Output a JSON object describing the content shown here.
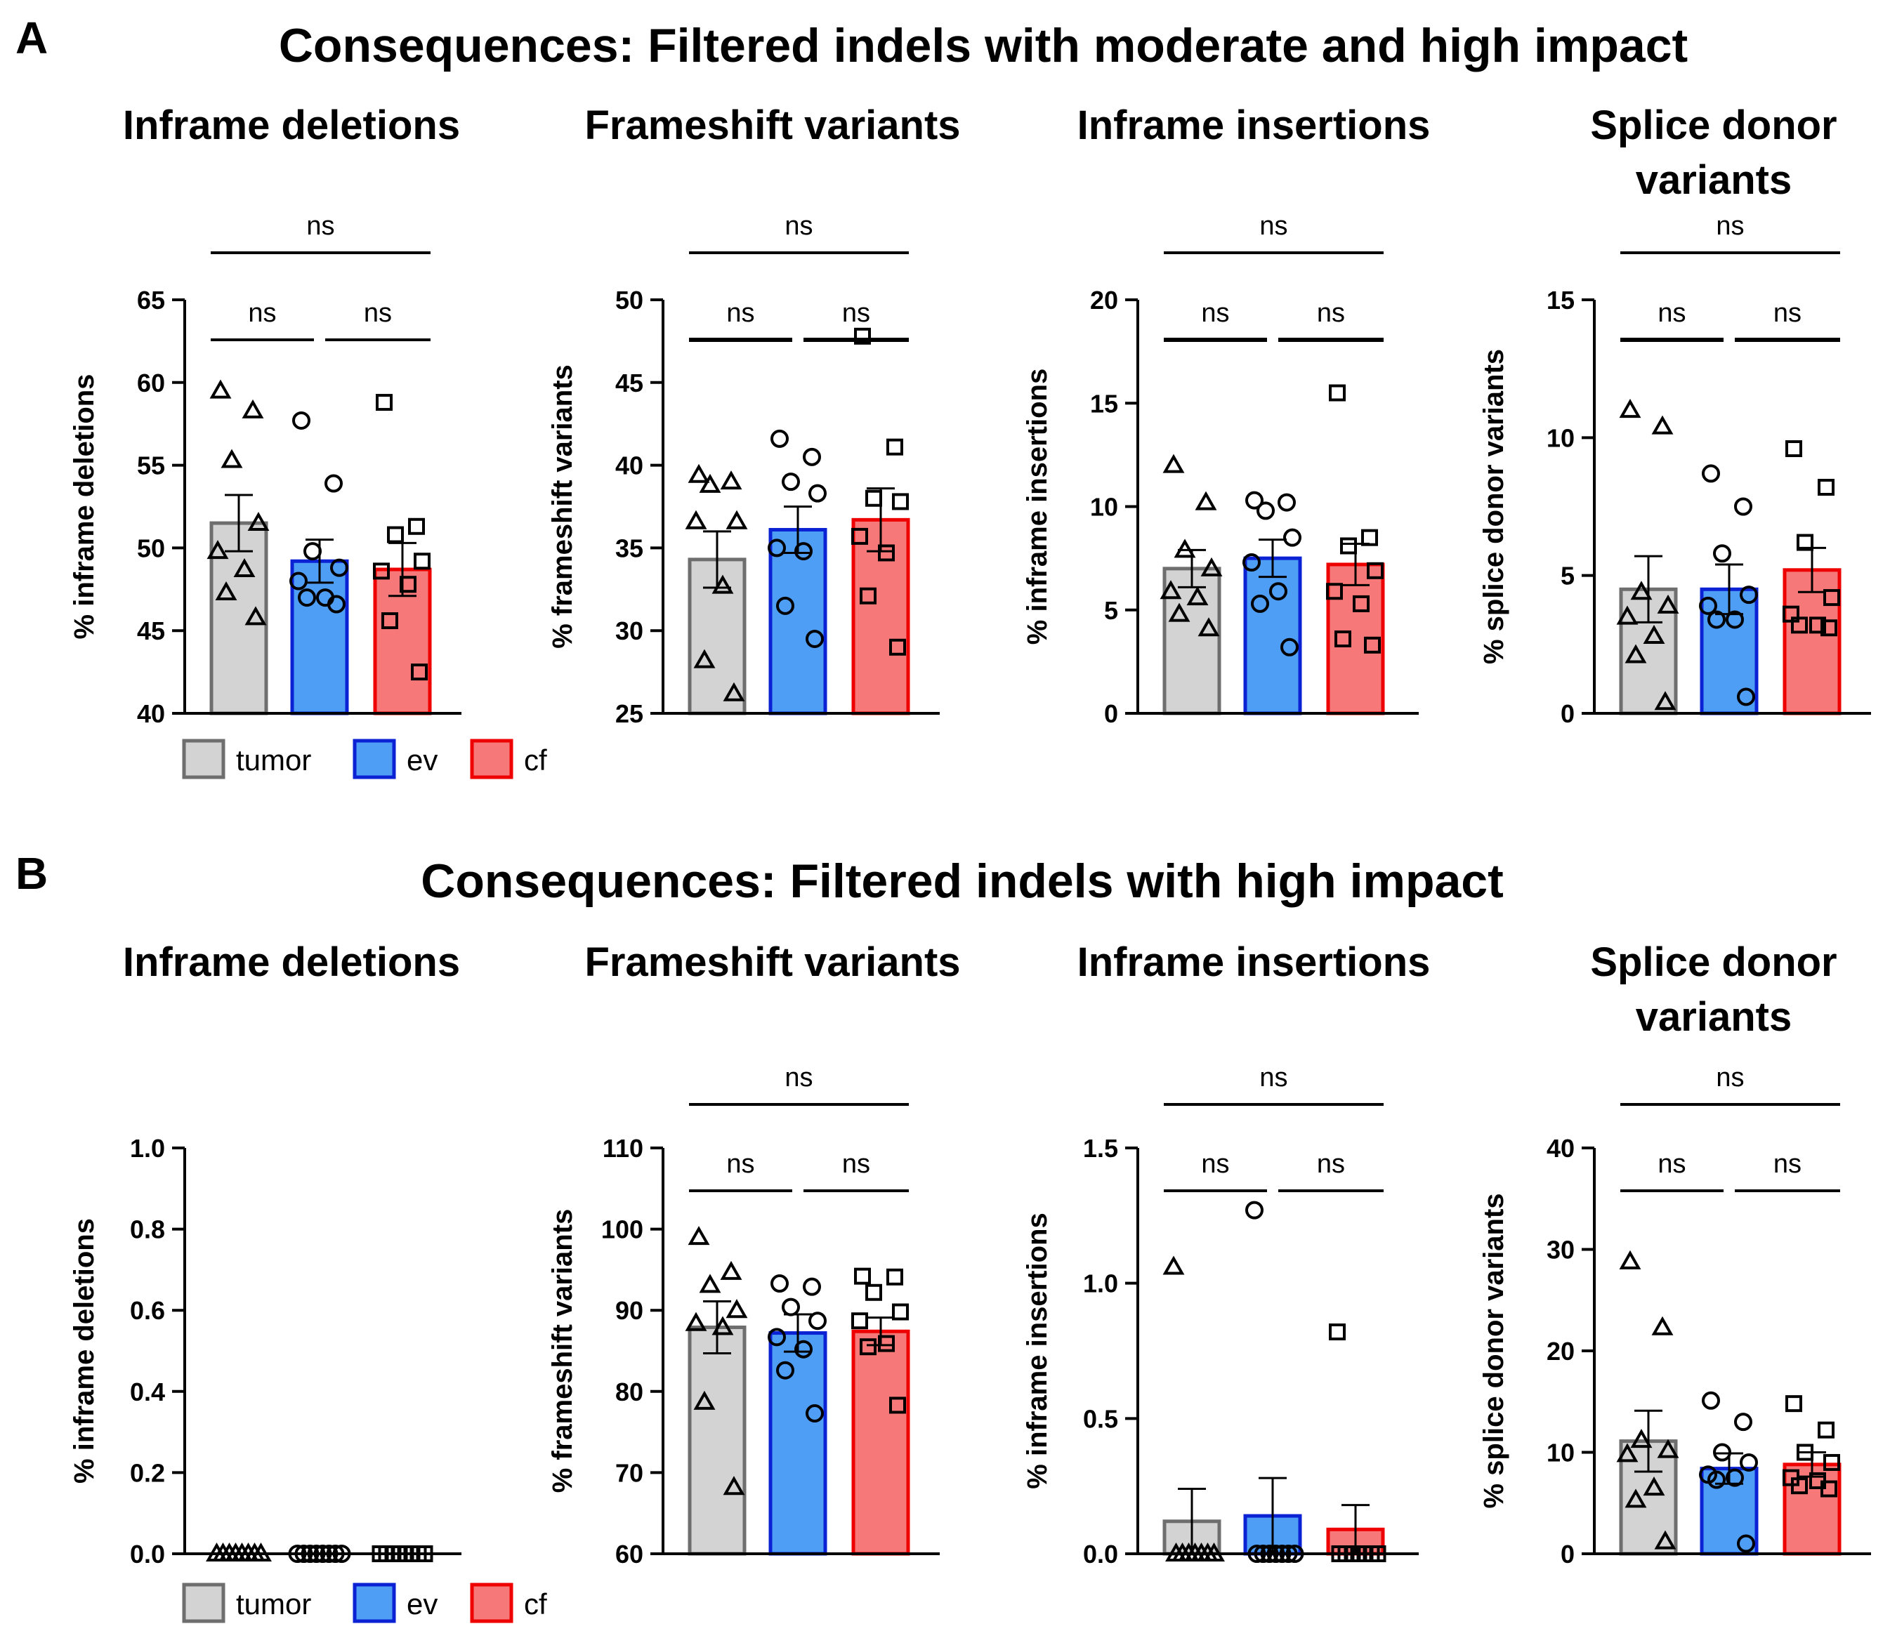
{
  "sections": [
    {
      "letter": "A",
      "title": "Consequences: Filtered indels with moderate and high impact"
    },
    {
      "letter": "B",
      "title": "Consequences: Filtered indels with high impact"
    }
  ],
  "groups": [
    "tumor",
    "ev",
    "cf"
  ],
  "colors": {
    "tumor": "#d3d3d3",
    "ev": "#4f9ef5",
    "cf": "#f77878",
    "tumor_edge": "#6e6e6e",
    "ev_edge": "#0b22d4",
    "cf_edge": "#ee0000"
  },
  "legend": [
    {
      "label": "tumor",
      "group": "tumor"
    },
    {
      "label": "ev",
      "group": "ev"
    },
    {
      "label": "cf",
      "group": "cf"
    }
  ],
  "chart_data": [
    {
      "type": "bar",
      "section": "A",
      "title": [
        "Inframe deletions"
      ],
      "ylabel": "% inframe deletions",
      "ylim": [
        40,
        65
      ],
      "yticks": [
        40,
        45,
        50,
        55,
        60,
        65
      ],
      "decimals": 0,
      "categories": [
        "tumor",
        "ev",
        "cf"
      ],
      "series": [
        {
          "name": "tumor",
          "mean": 51.5,
          "sem": 1.7,
          "points": [
            59.5,
            58.3,
            55.3,
            51.5,
            49.8,
            48.7,
            47.3,
            45.8
          ]
        },
        {
          "name": "ev",
          "mean": 49.2,
          "sem": 1.3,
          "points": [
            57.7,
            53.9,
            49.8,
            48.8,
            48.0,
            47.0,
            47.0,
            46.6
          ]
        },
        {
          "name": "cf",
          "mean": 48.7,
          "sem": 1.6,
          "points": [
            58.8,
            51.3,
            50.8,
            49.2,
            48.6,
            47.8,
            45.6,
            42.5
          ]
        }
      ],
      "significance": [
        {
          "from": 0,
          "to": 1,
          "label": "ns",
          "level": 1
        },
        {
          "from": 1,
          "to": 2,
          "label": "ns",
          "level": 1
        },
        {
          "from": 0,
          "to": 2,
          "label": "ns",
          "level": 2
        }
      ]
    },
    {
      "type": "bar",
      "section": "A",
      "title": [
        "Frameshift variants"
      ],
      "ylabel": "% frameshift variants",
      "ylim": [
        25,
        50
      ],
      "yticks": [
        25,
        30,
        35,
        40,
        45,
        50
      ],
      "decimals": 0,
      "categories": [
        "tumor",
        "ev",
        "cf"
      ],
      "series": [
        {
          "name": "tumor",
          "mean": 34.3,
          "sem": 1.7,
          "points": [
            39.4,
            39.0,
            38.8,
            36.6,
            36.6,
            32.7,
            28.2,
            26.2
          ]
        },
        {
          "name": "ev",
          "mean": 36.1,
          "sem": 1.4,
          "points": [
            41.6,
            40.5,
            39.0,
            38.3,
            35.0,
            34.8,
            31.5,
            29.5
          ]
        },
        {
          "name": "cf",
          "mean": 36.7,
          "sem": 1.9,
          "points": [
            47.8,
            41.1,
            38.0,
            37.8,
            35.7,
            34.7,
            32.1,
            29.0
          ]
        }
      ],
      "significance": [
        {
          "from": 0,
          "to": 1,
          "label": "ns",
          "level": 1
        },
        {
          "from": 1,
          "to": 2,
          "label": "ns",
          "level": 1
        },
        {
          "from": 0,
          "to": 2,
          "label": "ns",
          "level": 2
        }
      ]
    },
    {
      "type": "bar",
      "section": "A",
      "title": [
        "Inframe insertions"
      ],
      "ylabel": "% inframe insertions",
      "ylim": [
        0,
        20
      ],
      "yticks": [
        0,
        5,
        10,
        15,
        20
      ],
      "decimals": 0,
      "categories": [
        "tumor",
        "ev",
        "cf"
      ],
      "series": [
        {
          "name": "tumor",
          "mean": 7.0,
          "sem": 0.9,
          "points": [
            12.0,
            10.2,
            7.9,
            7.0,
            5.9,
            5.6,
            4.8,
            4.1
          ]
        },
        {
          "name": "ev",
          "mean": 7.5,
          "sem": 0.9,
          "points": [
            10.3,
            10.2,
            9.8,
            8.5,
            7.3,
            5.9,
            5.3,
            3.2
          ]
        },
        {
          "name": "cf",
          "mean": 7.2,
          "sem": 1.0,
          "points": [
            15.5,
            8.5,
            8.1,
            6.9,
            5.9,
            5.3,
            3.6,
            3.3
          ]
        }
      ],
      "significance": [
        {
          "from": 0,
          "to": 1,
          "label": "ns",
          "level": 1
        },
        {
          "from": 1,
          "to": 2,
          "label": "ns",
          "level": 1
        },
        {
          "from": 0,
          "to": 2,
          "label": "ns",
          "level": 2
        }
      ]
    },
    {
      "type": "bar",
      "section": "A",
      "title": [
        "Splice donor",
        "variants"
      ],
      "ylabel": "% splice donor variants",
      "ylim": [
        0,
        15
      ],
      "yticks": [
        0,
        5,
        10,
        15
      ],
      "decimals": 0,
      "categories": [
        "tumor",
        "ev",
        "cf"
      ],
      "series": [
        {
          "name": "tumor",
          "mean": 4.5,
          "sem": 1.2,
          "points": [
            11.0,
            10.4,
            4.4,
            3.9,
            3.5,
            2.8,
            2.1,
            0.4
          ]
        },
        {
          "name": "ev",
          "mean": 4.5,
          "sem": 0.9,
          "points": [
            8.7,
            7.5,
            5.8,
            4.3,
            3.9,
            3.4,
            3.4,
            0.6
          ]
        },
        {
          "name": "cf",
          "mean": 5.2,
          "sem": 0.8,
          "points": [
            9.6,
            8.2,
            6.2,
            4.2,
            3.6,
            3.2,
            3.2,
            3.1
          ]
        }
      ],
      "significance": [
        {
          "from": 0,
          "to": 1,
          "label": "ns",
          "level": 1
        },
        {
          "from": 1,
          "to": 2,
          "label": "ns",
          "level": 1
        },
        {
          "from": 0,
          "to": 2,
          "label": "ns",
          "level": 2
        }
      ]
    },
    {
      "type": "bar",
      "section": "B",
      "title": [
        "Inframe deletions"
      ],
      "ylabel": "% inframe deletions",
      "ylim": [
        0,
        1.0
      ],
      "yticks": [
        0,
        0.2,
        0.4,
        0.6,
        0.8,
        1.0
      ],
      "decimals": 1,
      "categories": [
        "tumor",
        "ev",
        "cf"
      ],
      "series": [
        {
          "name": "tumor",
          "mean": 0,
          "sem": 0,
          "points": [
            0,
            0,
            0,
            0,
            0,
            0,
            0,
            0
          ]
        },
        {
          "name": "ev",
          "mean": 0,
          "sem": 0,
          "points": [
            0,
            0,
            0,
            0,
            0,
            0,
            0,
            0
          ]
        },
        {
          "name": "cf",
          "mean": 0,
          "sem": 0,
          "points": [
            0,
            0,
            0,
            0,
            0,
            0,
            0,
            0
          ]
        }
      ],
      "significance": []
    },
    {
      "type": "bar",
      "section": "B",
      "title": [
        "Frameshift variants"
      ],
      "ylabel": "% frameshift variants",
      "ylim": [
        60,
        110
      ],
      "yticks": [
        60,
        70,
        80,
        90,
        100,
        110
      ],
      "decimals": 0,
      "categories": [
        "tumor",
        "ev",
        "cf"
      ],
      "series": [
        {
          "name": "tumor",
          "mean": 87.9,
          "sem": 3.2,
          "points": [
            99.0,
            94.7,
            93.1,
            90.0,
            88.4,
            87.9,
            78.7,
            68.2
          ]
        },
        {
          "name": "ev",
          "mean": 87.2,
          "sem": 2.3,
          "points": [
            93.3,
            92.9,
            90.4,
            88.7,
            86.7,
            85.2,
            82.6,
            77.3
          ]
        },
        {
          "name": "cf",
          "mean": 87.4,
          "sem": 1.7,
          "points": [
            94.2,
            94.1,
            92.2,
            89.8,
            88.7,
            85.9,
            85.5,
            78.3
          ]
        }
      ],
      "significance": [
        {
          "from": 0,
          "to": 1,
          "label": "ns",
          "level": 1
        },
        {
          "from": 1,
          "to": 2,
          "label": "ns",
          "level": 1
        },
        {
          "from": 0,
          "to": 2,
          "label": "ns",
          "level": 2
        }
      ]
    },
    {
      "type": "bar",
      "section": "B",
      "title": [
        "Inframe insertions"
      ],
      "ylabel": "% inframe insertions",
      "ylim": [
        0,
        1.5
      ],
      "yticks": [
        0,
        0.5,
        1.0,
        1.5
      ],
      "decimals": 1,
      "categories": [
        "tumor",
        "ev",
        "cf"
      ],
      "series": [
        {
          "name": "tumor",
          "mean": 0.12,
          "sem": 0.12,
          "points": [
            1.06,
            0,
            0,
            0,
            0,
            0,
            0,
            0
          ]
        },
        {
          "name": "ev",
          "mean": 0.14,
          "sem": 0.14,
          "points": [
            1.27,
            0,
            0,
            0,
            0,
            0,
            0,
            0
          ]
        },
        {
          "name": "cf",
          "mean": 0.09,
          "sem": 0.09,
          "points": [
            0.82,
            0,
            0,
            0,
            0,
            0,
            0,
            0
          ]
        }
      ],
      "significance": [
        {
          "from": 0,
          "to": 1,
          "label": "ns",
          "level": 1
        },
        {
          "from": 1,
          "to": 2,
          "label": "ns",
          "level": 1
        },
        {
          "from": 0,
          "to": 2,
          "label": "ns",
          "level": 2
        }
      ]
    },
    {
      "type": "bar",
      "section": "B",
      "title": [
        "Splice donor",
        "variants"
      ],
      "ylabel": "% splice donor variants",
      "ylim": [
        0,
        40
      ],
      "yticks": [
        0,
        10,
        20,
        30,
        40
      ],
      "decimals": 0,
      "categories": [
        "tumor",
        "ev",
        "cf"
      ],
      "series": [
        {
          "name": "tumor",
          "mean": 11.1,
          "sem": 3.0,
          "points": [
            28.8,
            22.3,
            11.2,
            10.2,
            9.8,
            6.5,
            5.3,
            1.2
          ]
        },
        {
          "name": "ev",
          "mean": 8.4,
          "sem": 1.5,
          "points": [
            15.1,
            13.0,
            10.0,
            9.0,
            7.8,
            7.5,
            7.3,
            1.0
          ]
        },
        {
          "name": "cf",
          "mean": 8.8,
          "sem": 1.2,
          "points": [
            14.8,
            12.2,
            10.0,
            9.0,
            7.5,
            7.2,
            6.7,
            6.4
          ]
        }
      ],
      "significance": [
        {
          "from": 0,
          "to": 1,
          "label": "ns",
          "level": 1
        },
        {
          "from": 1,
          "to": 2,
          "label": "ns",
          "level": 1
        },
        {
          "from": 0,
          "to": 2,
          "label": "ns",
          "level": 2
        }
      ]
    }
  ]
}
